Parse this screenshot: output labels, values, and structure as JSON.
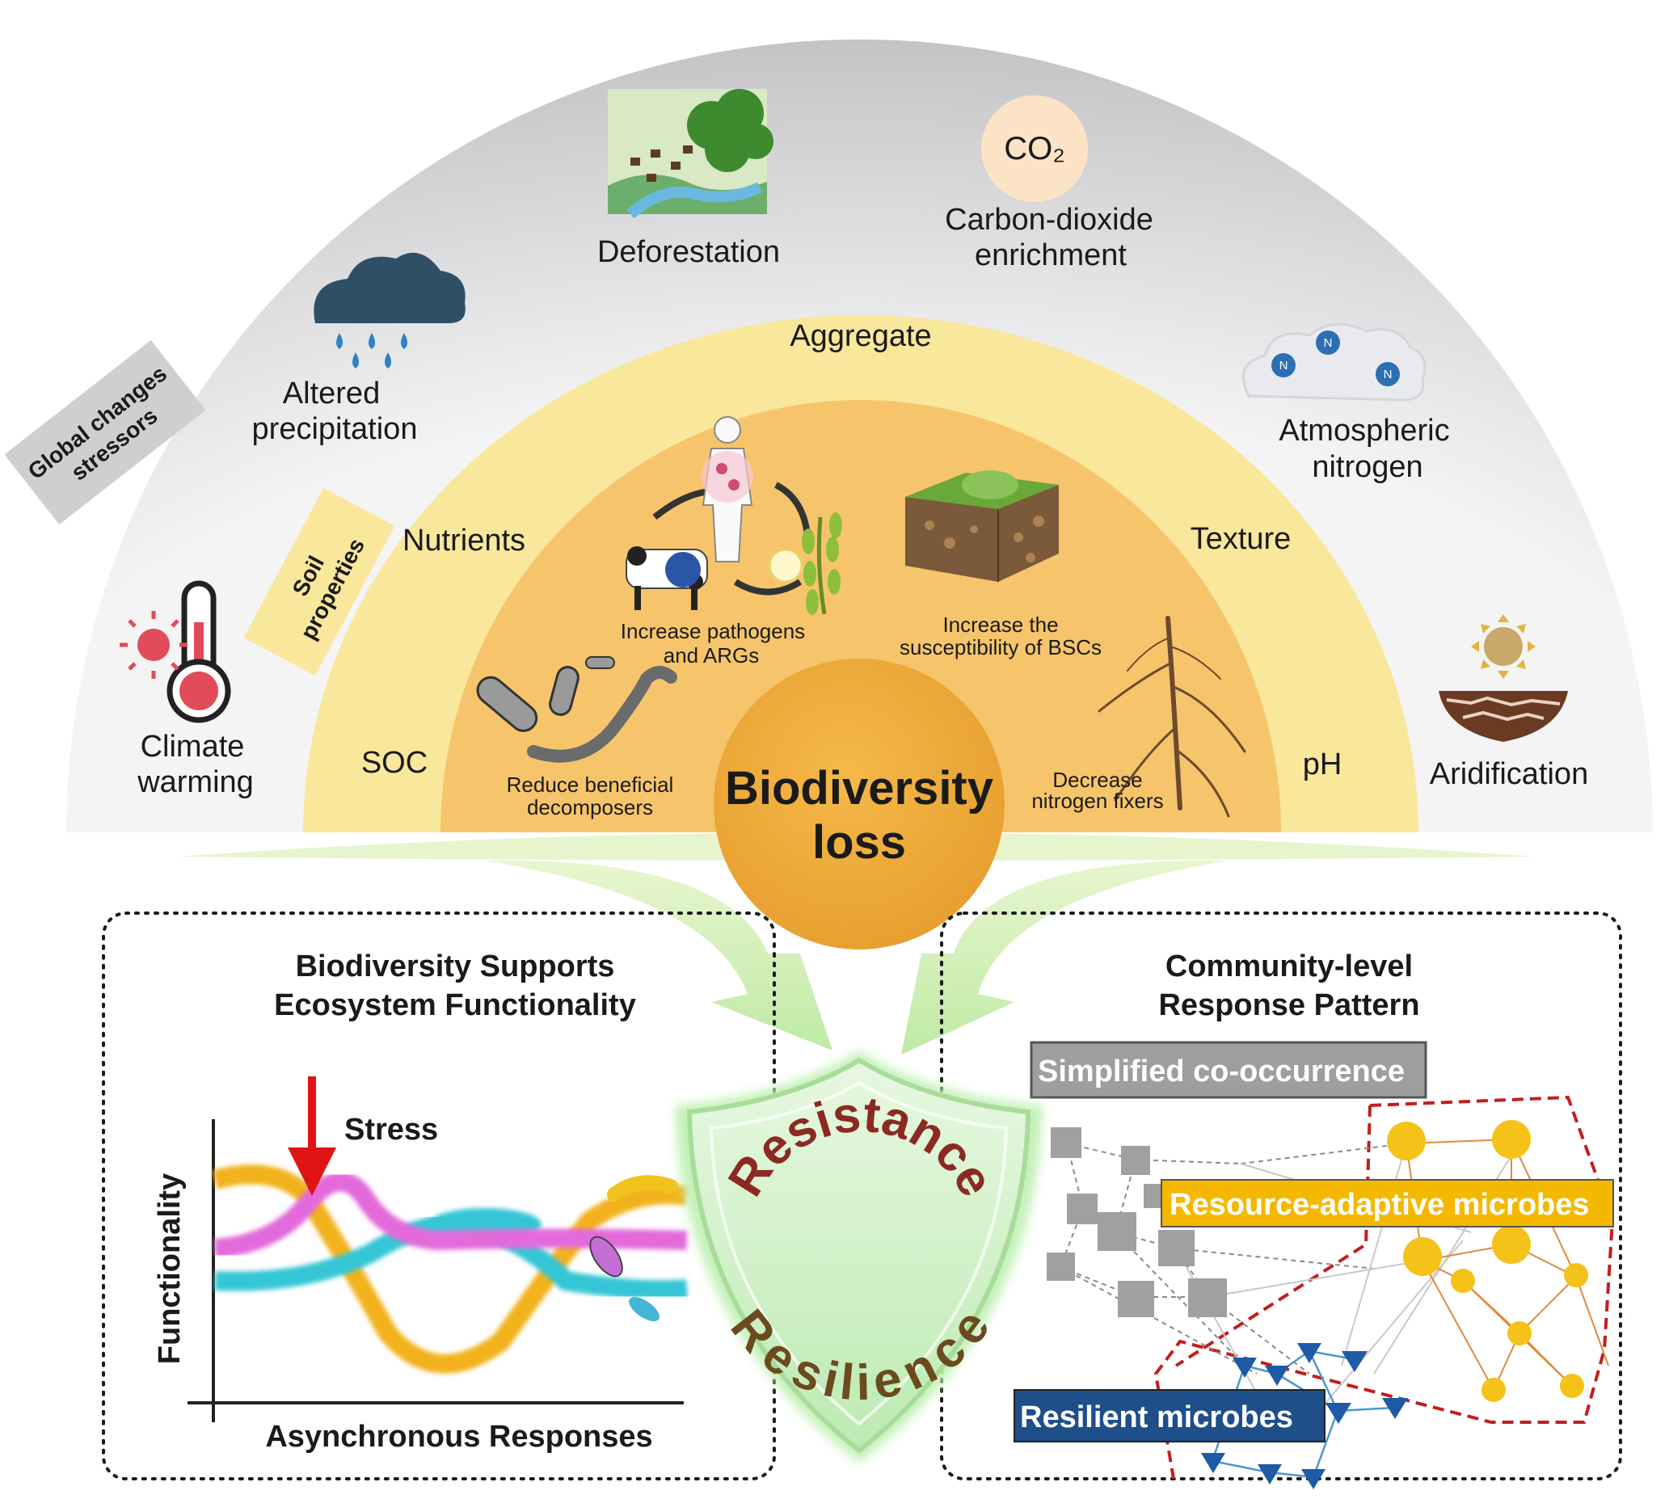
{
  "outer_ring": {
    "tag": [
      "Global changes",
      "stressors"
    ],
    "stressors": {
      "climate_warming": [
        "Climate",
        "warming"
      ],
      "altered_precipitation": [
        "Altered",
        "precipitation"
      ],
      "deforestation": "Deforestation",
      "co2_symbol": "CO₂",
      "co2_label": [
        "Carbon-dioxide",
        "enrichment"
      ],
      "atmospheric_nitrogen": [
        "Atmospheric",
        "nitrogen"
      ],
      "nitrogen_symbol": "N",
      "aridification": "Aridification"
    }
  },
  "middle_ring": {
    "tag": [
      "Soil",
      "properties"
    ],
    "properties": {
      "aggregate": "Aggregate",
      "nutrients": "Nutrients",
      "texture": "Texture",
      "soc": "SOC",
      "ph": "pH"
    }
  },
  "inner_ring": {
    "pathogens": [
      "Increase pathogens",
      "and ARGs"
    ],
    "bscs": [
      "Increase the",
      "susceptibility of BSCs"
    ],
    "decomposers": [
      "Reduce  beneficial",
      "decomposers"
    ],
    "fixers": [
      "Decrease",
      "nitrogen fixers"
    ]
  },
  "center": [
    "Biodiversity",
    "loss"
  ],
  "shield": {
    "top": "Resistance",
    "bottom": "Resilience"
  },
  "left_panel": {
    "title": [
      "Biodiversity Supports",
      "Ecosystem Functionality"
    ],
    "stress": "Stress",
    "ylabel": "Functionality",
    "xlabel": "Asynchronous Responses"
  },
  "right_panel": {
    "title": [
      "Community-level",
      "Response Pattern"
    ],
    "simplified": "Simplified co-occurrence",
    "resource": "Resource-adaptive microbes",
    "resilient": "Resilient microbes"
  },
  "colors": {
    "outer_ring": "#cfcfd1",
    "middle_ring": "#f9e79b",
    "inner_ring": "#f6c56b",
    "center": "#f0ad3c",
    "shield": "#c9efbf",
    "shield_text": "#8b2a22",
    "resource_box": "#f5b800",
    "resilient_box": "#1e4f8a",
    "simplified_box": "#9e9e9e"
  }
}
